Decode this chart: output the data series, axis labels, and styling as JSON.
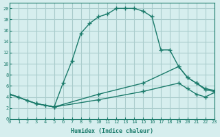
{
  "xlabel": "Humidex (Indice chaleur)",
  "bg_color": "#d6eeee",
  "grid_color": "#aacccc",
  "line_color": "#1a7a6a",
  "xlim": [
    0,
    23
  ],
  "ylim": [
    0,
    21
  ],
  "xticks": [
    0,
    1,
    2,
    3,
    4,
    5,
    6,
    7,
    8,
    9,
    10,
    11,
    12,
    13,
    14,
    15,
    16,
    17,
    18,
    19,
    20,
    21,
    22,
    23
  ],
  "yticks": [
    0,
    2,
    4,
    6,
    8,
    10,
    12,
    14,
    16,
    18,
    20
  ],
  "line1_x": [
    0,
    1,
    2,
    3,
    4,
    5,
    6,
    7,
    8,
    9,
    10,
    11,
    12,
    13,
    14,
    15,
    16,
    17,
    18,
    19,
    20,
    21,
    22,
    23
  ],
  "line1_y": [
    4.5,
    4.0,
    3.3,
    2.8,
    2.5,
    2.2,
    6.5,
    10.5,
    15.5,
    17.3,
    18.5,
    19.0,
    20.0,
    20.0,
    20.0,
    19.5,
    18.5,
    12.5,
    12.5,
    9.5,
    7.5,
    6.5,
    5.3,
    5.0
  ],
  "line2_x": [
    0,
    3,
    5,
    10,
    15,
    19,
    20,
    21,
    22,
    23
  ],
  "line2_y": [
    4.5,
    2.8,
    2.2,
    4.5,
    6.5,
    9.5,
    7.5,
    6.5,
    5.5,
    5.2
  ],
  "line3_x": [
    0,
    3,
    5,
    10,
    15,
    19,
    20,
    21,
    22,
    23
  ],
  "line3_y": [
    4.5,
    2.8,
    2.2,
    3.5,
    5.0,
    6.5,
    5.5,
    4.5,
    4.0,
    4.8
  ]
}
